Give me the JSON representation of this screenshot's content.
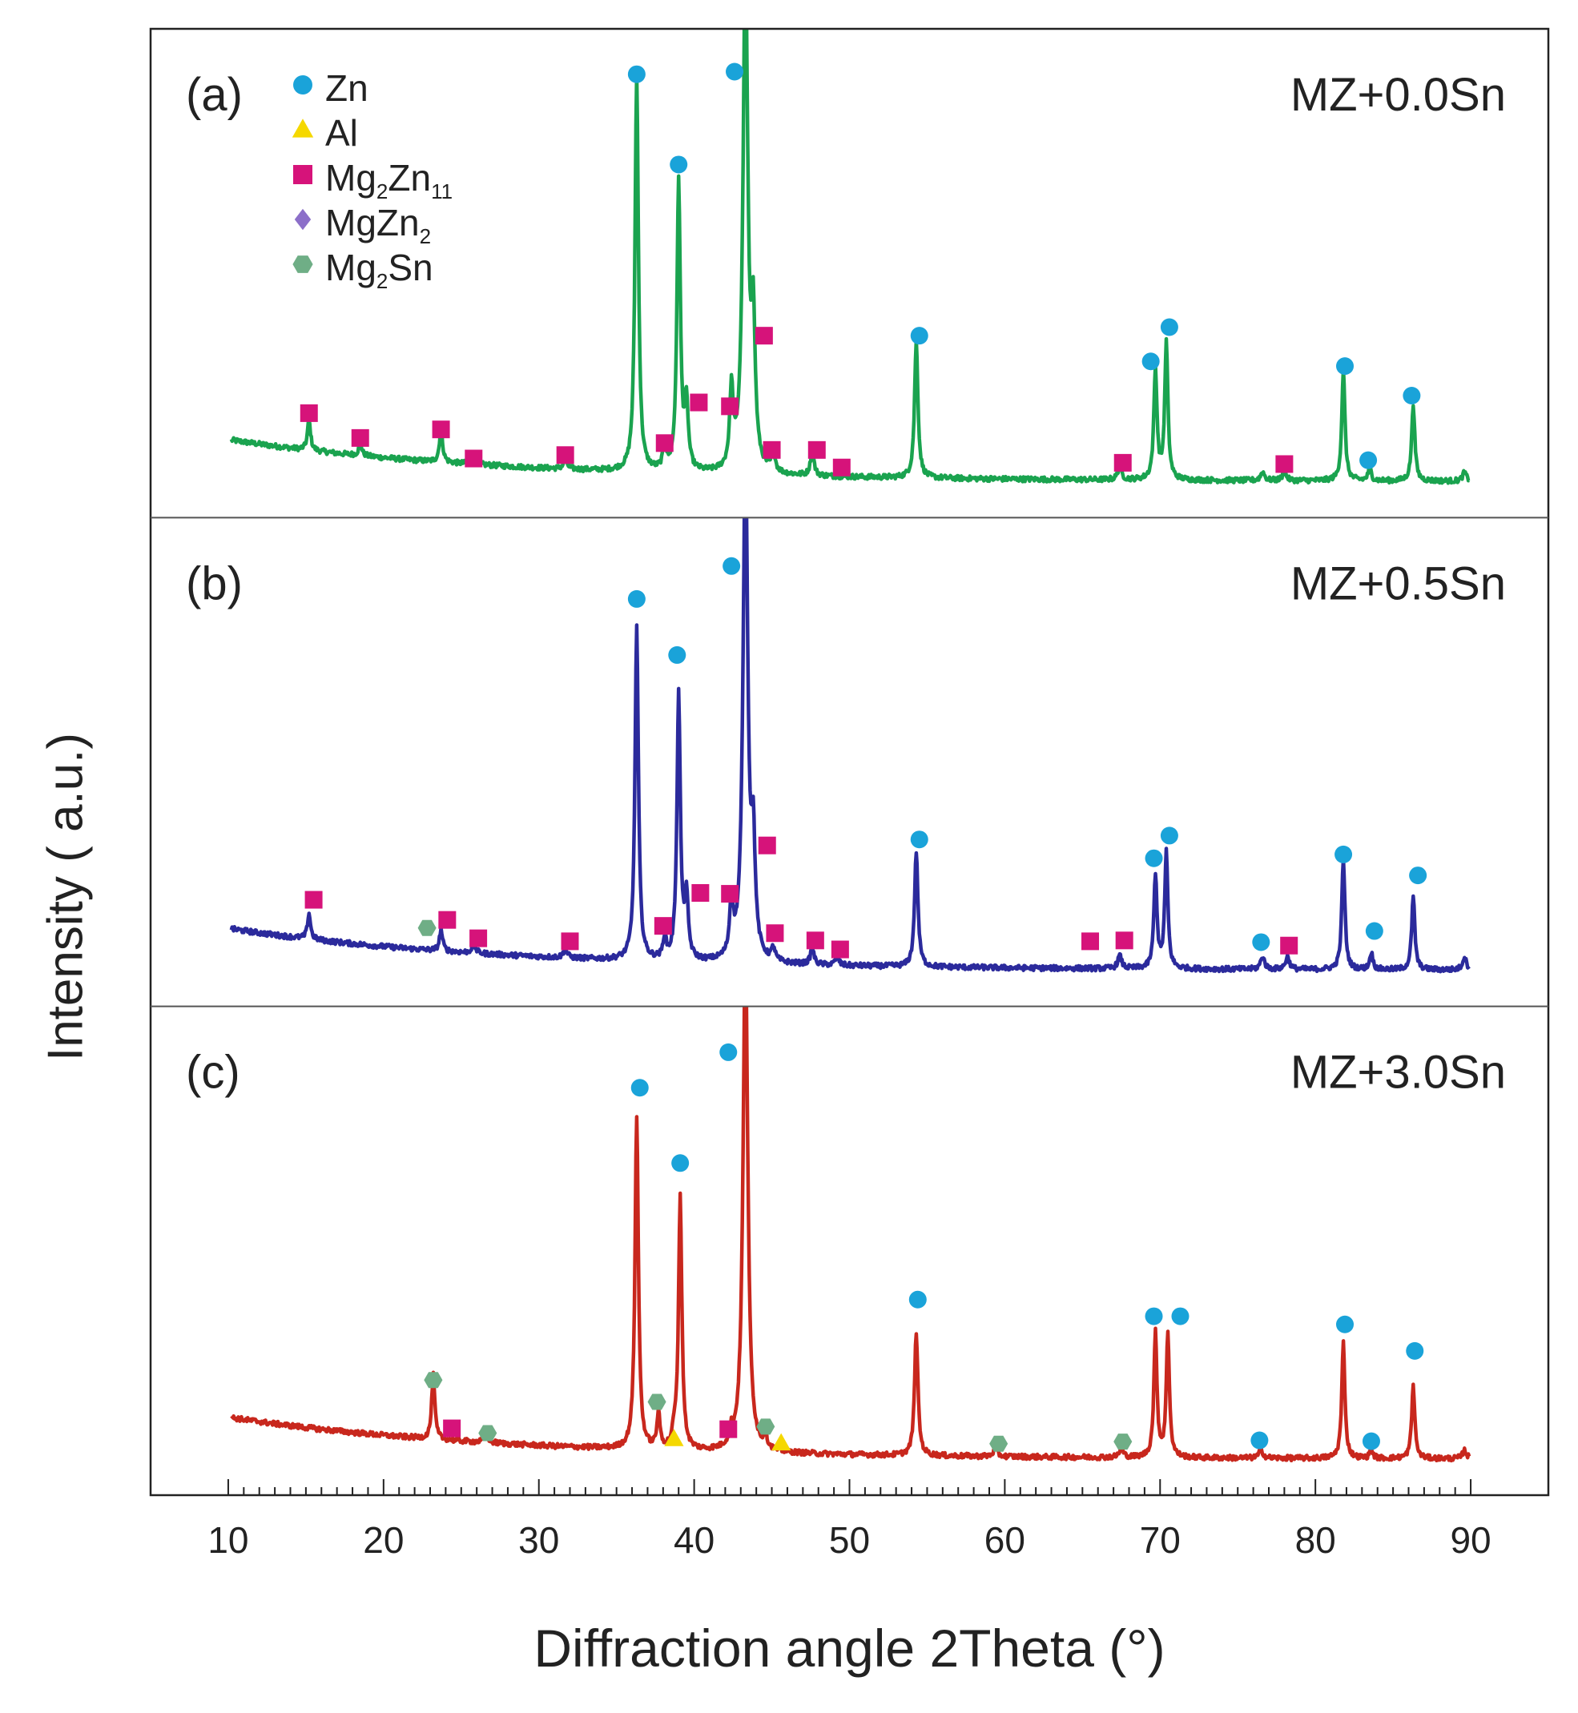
{
  "chart_data": {
    "type": "line",
    "xlabel": "Diffraction angle 2Theta (°)",
    "ylabel": "Intensity ( a.u.)",
    "xlim": [
      5,
      95
    ],
    "x_ticks": [
      10,
      20,
      30,
      40,
      50,
      60,
      70,
      80,
      90
    ],
    "legend": {
      "placement": "top-left",
      "entries": [
        {
          "name": "Zn",
          "marker": "circle",
          "color": "#1aa3d9"
        },
        {
          "name": "Al",
          "marker": "triangle",
          "color": "#f5d800"
        },
        {
          "name": "Mg2Zn11",
          "base": "Mg",
          "sub1": "2",
          "mid": "Zn",
          "sub2": "11",
          "marker": "square",
          "color": "#d6137a"
        },
        {
          "name": "MgZn2",
          "base": "MgZn",
          "sub1": "2",
          "mid": "",
          "sub2": "",
          "marker": "diamond",
          "color": "#8c6fc9"
        },
        {
          "name": "Mg2Sn",
          "base": "Mg",
          "sub1": "2",
          "mid": "Sn",
          "sub2": "",
          "marker": "hexagon",
          "color": "#6fae86"
        }
      ]
    },
    "panels": [
      {
        "label": "(a)",
        "title": "MZ+0.0Sn",
        "color": "#1aa34f",
        "baseline": {
          "start": 0.11,
          "end": 0.013
        },
        "peaks": [
          [
            15.2,
            0.07,
            0.12
          ],
          [
            18.5,
            0.03,
            0.12
          ],
          [
            23.7,
            0.08,
            0.12
          ],
          [
            25.8,
            0.02,
            0.15
          ],
          [
            31.7,
            0.02,
            0.15
          ],
          [
            36.3,
            0.93,
            0.13
          ],
          [
            38.1,
            0.06,
            0.12
          ],
          [
            39.0,
            0.68,
            0.13
          ],
          [
            39.5,
            0.15,
            0.14
          ],
          [
            42.4,
            0.18,
            0.13
          ],
          [
            43.3,
            1.2,
            0.18
          ],
          [
            43.8,
            0.32,
            0.15
          ],
          [
            45.1,
            0.05,
            0.13
          ],
          [
            47.6,
            0.06,
            0.13
          ],
          [
            54.3,
            0.32,
            0.13
          ],
          [
            67.4,
            0.03,
            0.15
          ],
          [
            69.7,
            0.26,
            0.12
          ],
          [
            70.4,
            0.32,
            0.12
          ],
          [
            76.6,
            0.02,
            0.15
          ],
          [
            78.0,
            0.02,
            0.15
          ],
          [
            81.8,
            0.26,
            0.12
          ],
          [
            83.5,
            0.03,
            0.12
          ],
          [
            86.3,
            0.18,
            0.12
          ],
          [
            89.6,
            0.02,
            0.15
          ]
        ],
        "markers": [
          {
            "x": 15.2,
            "y": 0.173,
            "type": "square"
          },
          {
            "x": 18.5,
            "y": 0.115,
            "type": "square"
          },
          {
            "x": 23.7,
            "y": 0.135,
            "type": "square"
          },
          {
            "x": 25.8,
            "y": 0.067,
            "type": "square"
          },
          {
            "x": 31.7,
            "y": 0.075,
            "type": "square"
          },
          {
            "x": 36.3,
            "y": 0.965,
            "type": "circle"
          },
          {
            "x": 38.1,
            "y": 0.103,
            "type": "square"
          },
          {
            "x": 39.0,
            "y": 0.754,
            "type": "circle"
          },
          {
            "x": 40.3,
            "y": 0.198,
            "type": "square"
          },
          {
            "x": 42.3,
            "y": 0.189,
            "type": "square"
          },
          {
            "x": 42.6,
            "y": 0.971,
            "type": "circle"
          },
          {
            "x": 44.5,
            "y": 0.354,
            "type": "square"
          },
          {
            "x": 45.0,
            "y": 0.087,
            "type": "square"
          },
          {
            "x": 47.9,
            "y": 0.087,
            "type": "square"
          },
          {
            "x": 49.5,
            "y": 0.046,
            "type": "square"
          },
          {
            "x": 54.5,
            "y": 0.354,
            "type": "circle"
          },
          {
            "x": 67.6,
            "y": 0.057,
            "type": "square"
          },
          {
            "x": 69.4,
            "y": 0.294,
            "type": "circle"
          },
          {
            "x": 70.6,
            "y": 0.374,
            "type": "circle"
          },
          {
            "x": 78.0,
            "y": 0.054,
            "type": "square"
          },
          {
            "x": 81.9,
            "y": 0.283,
            "type": "circle"
          },
          {
            "x": 83.4,
            "y": 0.063,
            "type": "circle"
          },
          {
            "x": 86.2,
            "y": 0.214,
            "type": "circle"
          }
        ]
      },
      {
        "label": "(b)",
        "title": "MZ+0.5Sn",
        "color": "#2b2a9c",
        "baseline": {
          "start": 0.11,
          "end": 0.013
        },
        "peaks": [
          [
            15.2,
            0.06,
            0.12
          ],
          [
            23.7,
            0.05,
            0.12
          ],
          [
            25.8,
            0.02,
            0.15
          ],
          [
            31.7,
            0.02,
            0.15
          ],
          [
            36.3,
            0.78,
            0.13
          ],
          [
            38.1,
            0.05,
            0.12
          ],
          [
            39.0,
            0.62,
            0.13
          ],
          [
            39.5,
            0.14,
            0.14
          ],
          [
            42.4,
            0.13,
            0.13
          ],
          [
            43.3,
            1.2,
            0.18
          ],
          [
            43.8,
            0.25,
            0.15
          ],
          [
            45.1,
            0.03,
            0.13
          ],
          [
            47.6,
            0.04,
            0.13
          ],
          [
            49.2,
            0.02,
            0.13
          ],
          [
            54.3,
            0.27,
            0.13
          ],
          [
            67.4,
            0.03,
            0.15
          ],
          [
            69.7,
            0.22,
            0.12
          ],
          [
            70.4,
            0.27,
            0.12
          ],
          [
            76.6,
            0.03,
            0.15
          ],
          [
            78.2,
            0.03,
            0.15
          ],
          [
            81.8,
            0.26,
            0.12
          ],
          [
            83.6,
            0.04,
            0.12
          ],
          [
            86.3,
            0.17,
            0.12
          ],
          [
            89.6,
            0.03,
            0.15
          ]
        ],
        "markers": [
          {
            "x": 15.5,
            "y": 0.178,
            "type": "square"
          },
          {
            "x": 22.8,
            "y": 0.112,
            "type": "hexagon"
          },
          {
            "x": 24.1,
            "y": 0.131,
            "type": "square"
          },
          {
            "x": 26.1,
            "y": 0.088,
            "type": "square"
          },
          {
            "x": 32.0,
            "y": 0.081,
            "type": "square"
          },
          {
            "x": 36.3,
            "y": 0.881,
            "type": "circle"
          },
          {
            "x": 38.0,
            "y": 0.117,
            "type": "square"
          },
          {
            "x": 38.9,
            "y": 0.75,
            "type": "circle"
          },
          {
            "x": 40.4,
            "y": 0.194,
            "type": "square"
          },
          {
            "x": 42.3,
            "y": 0.192,
            "type": "square"
          },
          {
            "x": 42.4,
            "y": 0.958,
            "type": "circle"
          },
          {
            "x": 44.7,
            "y": 0.305,
            "type": "square"
          },
          {
            "x": 45.2,
            "y": 0.1,
            "type": "square"
          },
          {
            "x": 47.8,
            "y": 0.083,
            "type": "square"
          },
          {
            "x": 49.4,
            "y": 0.062,
            "type": "square"
          },
          {
            "x": 54.5,
            "y": 0.319,
            "type": "circle"
          },
          {
            "x": 65.5,
            "y": 0.081,
            "type": "square"
          },
          {
            "x": 67.7,
            "y": 0.083,
            "type": "square"
          },
          {
            "x": 69.6,
            "y": 0.275,
            "type": "circle"
          },
          {
            "x": 70.6,
            "y": 0.328,
            "type": "circle"
          },
          {
            "x": 76.5,
            "y": 0.079,
            "type": "circle"
          },
          {
            "x": 78.3,
            "y": 0.071,
            "type": "square"
          },
          {
            "x": 81.8,
            "y": 0.284,
            "type": "circle"
          },
          {
            "x": 83.8,
            "y": 0.105,
            "type": "circle"
          },
          {
            "x": 86.6,
            "y": 0.235,
            "type": "circle"
          }
        ]
      },
      {
        "label": "(c)",
        "title": "MZ+3.0Sn",
        "color": "#c8271d",
        "baseline": {
          "start": 0.11,
          "end": 0.013
        },
        "peaks": [
          [
            23.2,
            0.15,
            0.12
          ],
          [
            26.6,
            0.03,
            0.12
          ],
          [
            36.3,
            0.78,
            0.13
          ],
          [
            37.7,
            0.08,
            0.12
          ],
          [
            38.7,
            0.03,
            0.12
          ],
          [
            39.1,
            0.59,
            0.13
          ],
          [
            42.4,
            0.03,
            0.13
          ],
          [
            43.3,
            1.2,
            0.18
          ],
          [
            44.6,
            0.03,
            0.12
          ],
          [
            54.3,
            0.29,
            0.13
          ],
          [
            59.4,
            0.02,
            0.15
          ],
          [
            67.5,
            0.02,
            0.15
          ],
          [
            69.7,
            0.29,
            0.12
          ],
          [
            70.5,
            0.29,
            0.12
          ],
          [
            76.5,
            0.02,
            0.15
          ],
          [
            81.8,
            0.27,
            0.12
          ],
          [
            83.6,
            0.02,
            0.12
          ],
          [
            86.3,
            0.17,
            0.12
          ],
          [
            89.6,
            0.02,
            0.15
          ]
        ],
        "markers": [
          {
            "x": 23.2,
            "y": 0.198,
            "type": "hexagon"
          },
          {
            "x": 24.4,
            "y": 0.085,
            "type": "square"
          },
          {
            "x": 26.7,
            "y": 0.074,
            "type": "hexagon"
          },
          {
            "x": 36.5,
            "y": 0.881,
            "type": "circle"
          },
          {
            "x": 37.6,
            "y": 0.147,
            "type": "hexagon"
          },
          {
            "x": 38.7,
            "y": 0.06,
            "type": "triangle"
          },
          {
            "x": 39.1,
            "y": 0.705,
            "type": "circle"
          },
          {
            "x": 42.2,
            "y": 0.083,
            "type": "square"
          },
          {
            "x": 42.2,
            "y": 0.964,
            "type": "circle"
          },
          {
            "x": 44.6,
            "y": 0.089,
            "type": "hexagon"
          },
          {
            "x": 45.6,
            "y": 0.05,
            "type": "triangle"
          },
          {
            "x": 54.4,
            "y": 0.386,
            "type": "circle"
          },
          {
            "x": 59.6,
            "y": 0.049,
            "type": "hexagon"
          },
          {
            "x": 67.6,
            "y": 0.054,
            "type": "hexagon"
          },
          {
            "x": 69.6,
            "y": 0.347,
            "type": "circle"
          },
          {
            "x": 71.3,
            "y": 0.347,
            "type": "circle"
          },
          {
            "x": 76.4,
            "y": 0.057,
            "type": "circle"
          },
          {
            "x": 81.9,
            "y": 0.328,
            "type": "circle"
          },
          {
            "x": 83.6,
            "y": 0.055,
            "type": "circle"
          },
          {
            "x": 86.4,
            "y": 0.266,
            "type": "circle"
          }
        ]
      }
    ]
  }
}
